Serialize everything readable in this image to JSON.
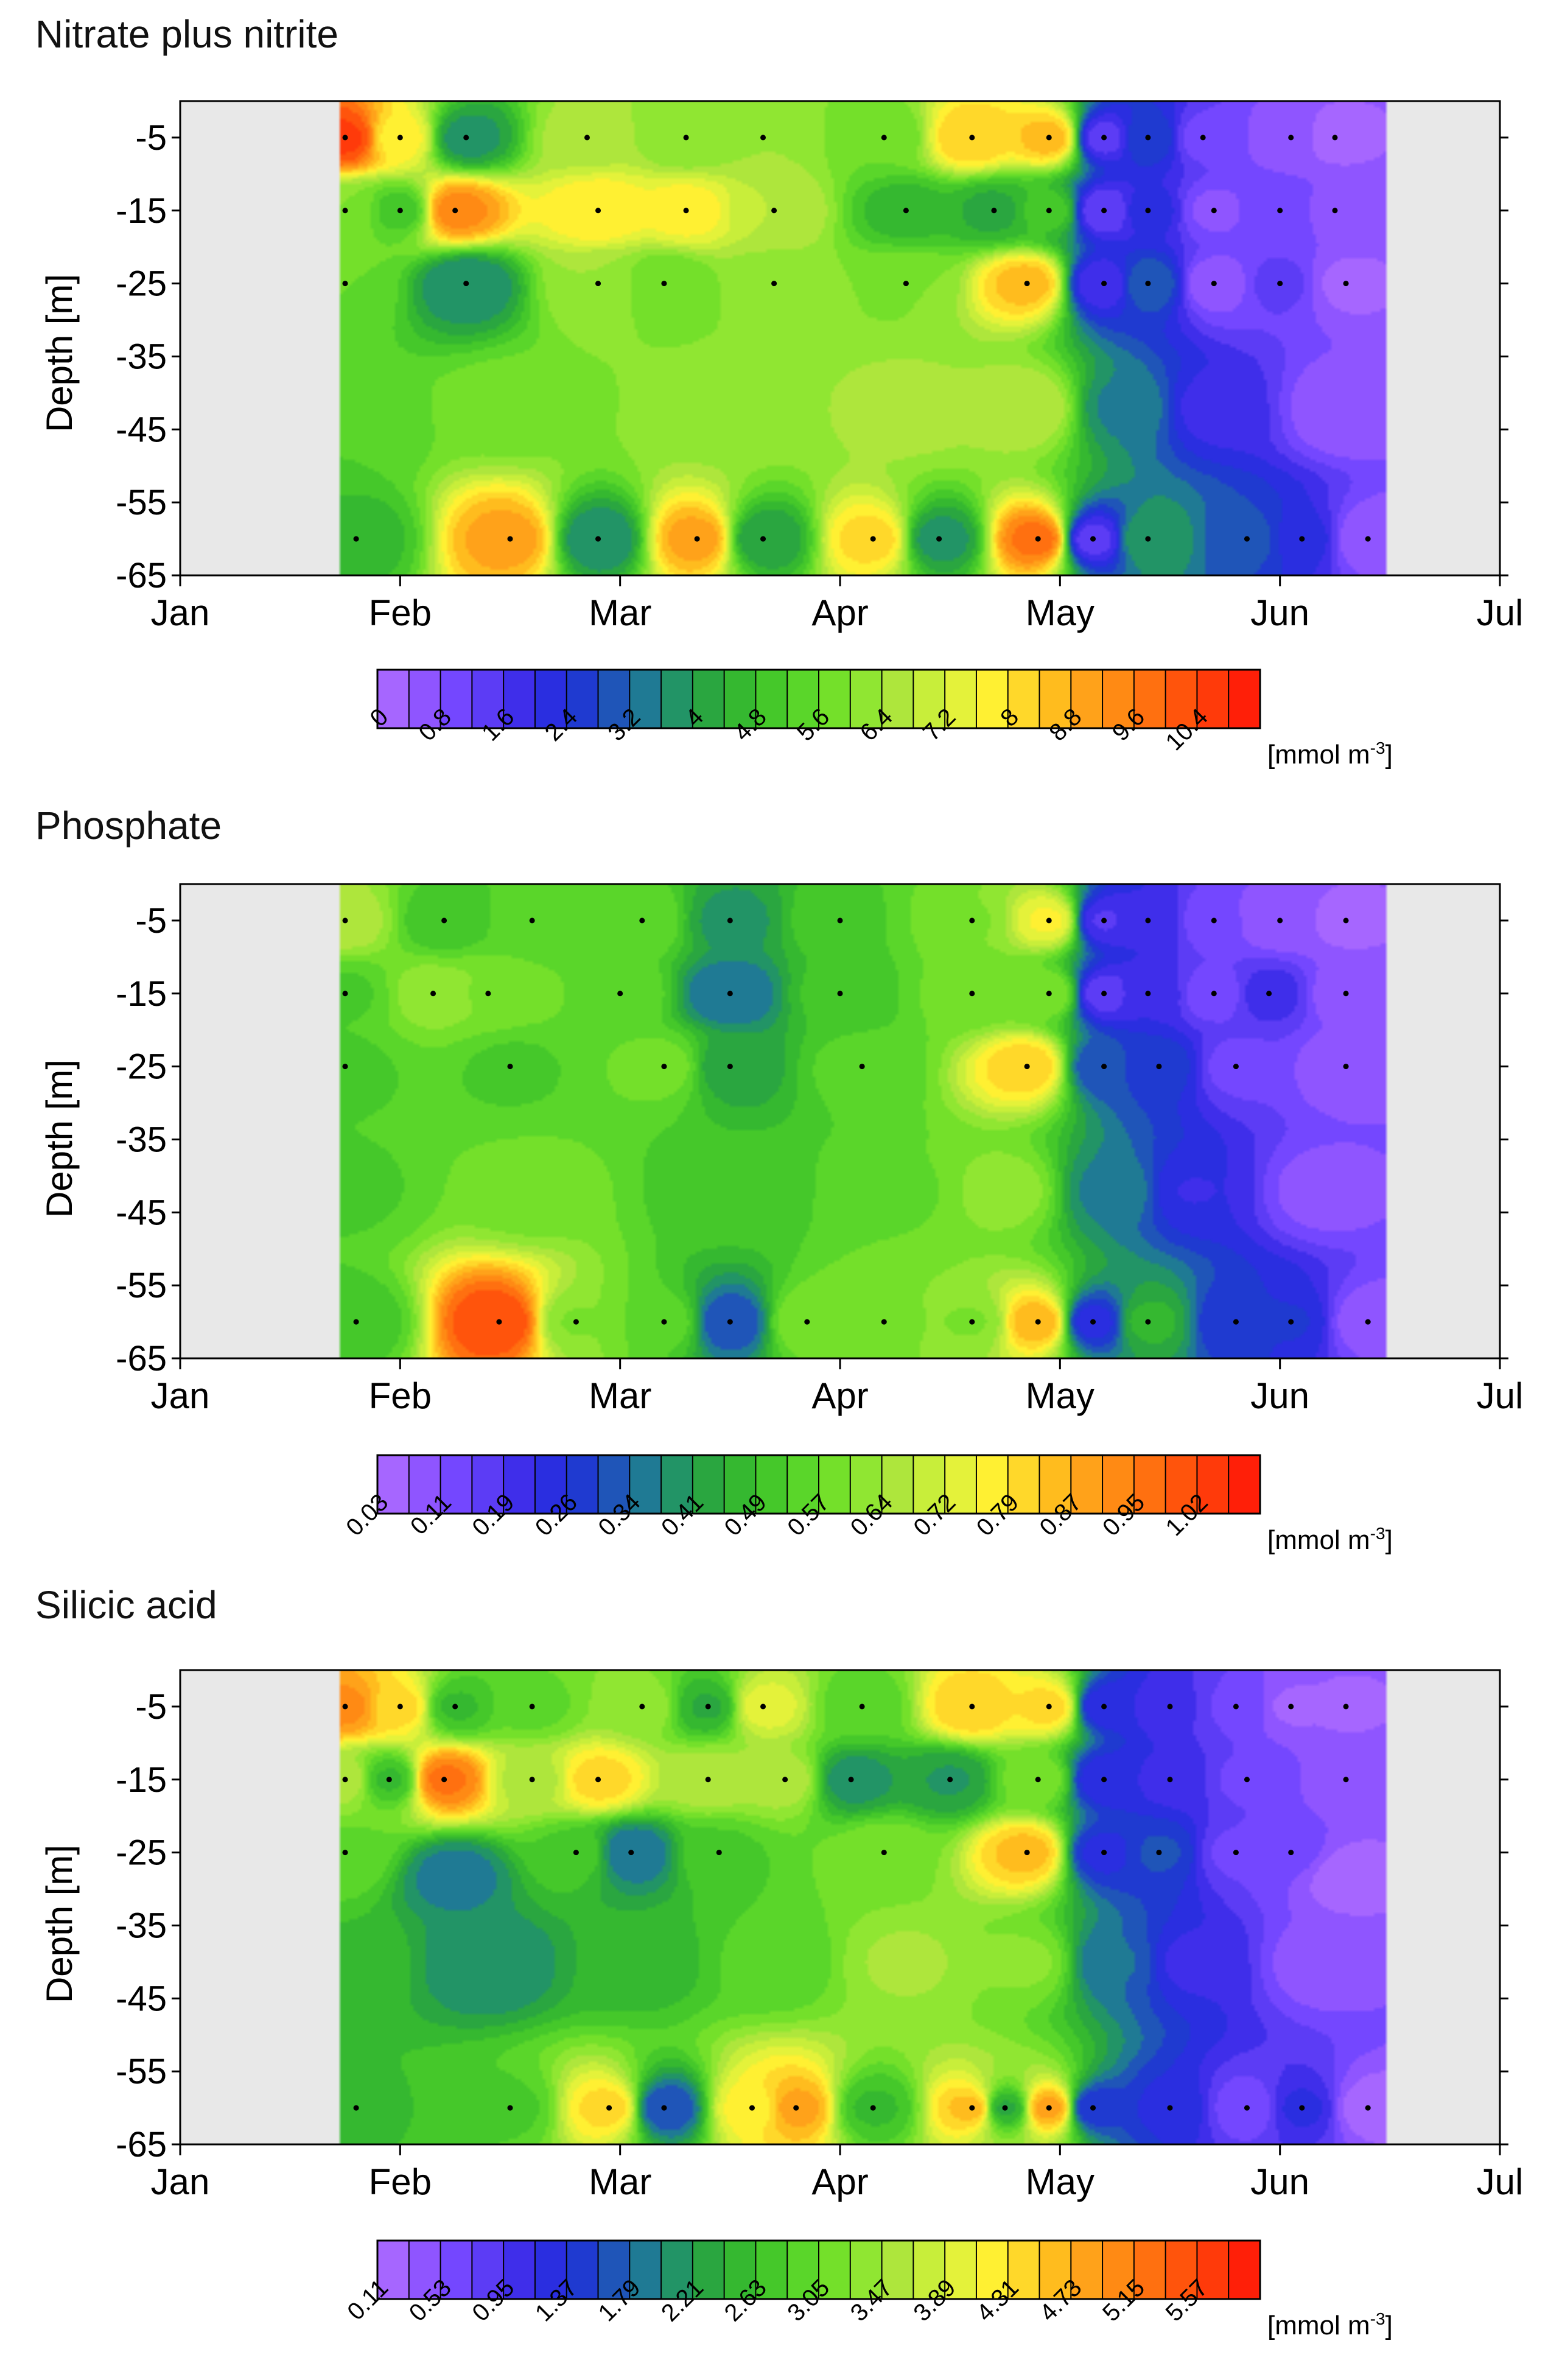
{
  "chart_data": [
    {
      "type": "heatmap",
      "title": "Nitrate plus nitrite",
      "xlabel": "",
      "ylabel": "Depth [m]",
      "x_tick_labels": [
        "Jan",
        "Feb",
        "Mar",
        "Apr",
        "May",
        "Jun",
        "Jul"
      ],
      "xlim_months": [
        0,
        6
      ],
      "ylim": [
        -65,
        0
      ],
      "y_ticks": [
        -5,
        -15,
        -25,
        -35,
        -45,
        -55,
        -65
      ],
      "data_xrange_months": [
        0.73,
        5.48
      ],
      "sample_depths": [
        -5,
        -15,
        -25,
        -60
      ],
      "colorbar": {
        "unit_prefix": "[mmol m",
        "unit_sup": "-3",
        "unit_suffix": "]",
        "tick_labels": [
          "0",
          "0.8",
          "1.6",
          "2.4",
          "3.2",
          "4",
          "4.8",
          "5.6",
          "6.4",
          "7.2",
          "8",
          "8.8",
          "9.6",
          "10.4"
        ],
        "levels": 28
      },
      "points": [
        {
          "t": 0.75,
          "d": -5,
          "v": 10.5
        },
        {
          "t": 1.0,
          "d": -5,
          "v": 7.8
        },
        {
          "t": 1.3,
          "d": -5,
          "v": 3.8
        },
        {
          "t": 1.85,
          "d": -5,
          "v": 6.6
        },
        {
          "t": 2.3,
          "d": -5,
          "v": 6.0
        },
        {
          "t": 2.65,
          "d": -5,
          "v": 6.4
        },
        {
          "t": 3.2,
          "d": -5,
          "v": 5.6
        },
        {
          "t": 3.6,
          "d": -5,
          "v": 8.4
        },
        {
          "t": 3.95,
          "d": -5,
          "v": 8.6
        },
        {
          "t": 4.2,
          "d": -5,
          "v": 1.4
        },
        {
          "t": 4.4,
          "d": -5,
          "v": 2.8
        },
        {
          "t": 4.65,
          "d": -5,
          "v": 1.0
        },
        {
          "t": 5.05,
          "d": -5,
          "v": 0.5
        },
        {
          "t": 5.25,
          "d": -5,
          "v": 0.3
        },
        {
          "t": 0.75,
          "d": -15,
          "v": 6.0
        },
        {
          "t": 1.0,
          "d": -15,
          "v": 5.0
        },
        {
          "t": 1.25,
          "d": -15,
          "v": 9.4
        },
        {
          "t": 1.9,
          "d": -15,
          "v": 8.0
        },
        {
          "t": 2.3,
          "d": -15,
          "v": 7.8
        },
        {
          "t": 2.7,
          "d": -15,
          "v": 6.8
        },
        {
          "t": 3.3,
          "d": -15,
          "v": 4.6
        },
        {
          "t": 3.7,
          "d": -15,
          "v": 4.3
        },
        {
          "t": 3.95,
          "d": -15,
          "v": 5.0
        },
        {
          "t": 4.2,
          "d": -15,
          "v": 1.2
        },
        {
          "t": 4.4,
          "d": -15,
          "v": 2.2
        },
        {
          "t": 4.7,
          "d": -15,
          "v": 0.7
        },
        {
          "t": 5.0,
          "d": -15,
          "v": 1.2
        },
        {
          "t": 5.25,
          "d": -15,
          "v": 0.6
        },
        {
          "t": 0.75,
          "d": -25,
          "v": 5.6
        },
        {
          "t": 1.3,
          "d": -25,
          "v": 3.6
        },
        {
          "t": 1.9,
          "d": -25,
          "v": 6.4
        },
        {
          "t": 2.2,
          "d": -25,
          "v": 5.6
        },
        {
          "t": 2.7,
          "d": -25,
          "v": 6.2
        },
        {
          "t": 3.3,
          "d": -25,
          "v": 6.0
        },
        {
          "t": 3.85,
          "d": -25,
          "v": 8.6
        },
        {
          "t": 4.2,
          "d": -25,
          "v": 1.6
        },
        {
          "t": 4.4,
          "d": -25,
          "v": 3.2
        },
        {
          "t": 4.7,
          "d": -25,
          "v": 0.5
        },
        {
          "t": 5.0,
          "d": -25,
          "v": 1.3
        },
        {
          "t": 5.3,
          "d": -25,
          "v": 0.3
        },
        {
          "t": 0.75,
          "d": -45,
          "v": 5.2
        },
        {
          "t": 1.5,
          "d": -42,
          "v": 5.8
        },
        {
          "t": 2.5,
          "d": -42,
          "v": 6.2
        },
        {
          "t": 3.3,
          "d": -42,
          "v": 6.6
        },
        {
          "t": 3.85,
          "d": -42,
          "v": 6.8
        },
        {
          "t": 4.3,
          "d": -42,
          "v": 3.5
        },
        {
          "t": 4.7,
          "d": -42,
          "v": 1.8
        },
        {
          "t": 5.3,
          "d": -42,
          "v": 0.4
        },
        {
          "t": 0.8,
          "d": -60,
          "v": 4.6
        },
        {
          "t": 1.5,
          "d": -60,
          "v": 9.0
        },
        {
          "t": 1.9,
          "d": -60,
          "v": 3.6
        },
        {
          "t": 2.35,
          "d": -60,
          "v": 9.0
        },
        {
          "t": 2.65,
          "d": -60,
          "v": 4.0
        },
        {
          "t": 3.15,
          "d": -60,
          "v": 8.2
        },
        {
          "t": 3.45,
          "d": -60,
          "v": 3.8
        },
        {
          "t": 3.9,
          "d": -60,
          "v": 9.8
        },
        {
          "t": 4.15,
          "d": -60,
          "v": 1.4
        },
        {
          "t": 4.4,
          "d": -60,
          "v": 4.0
        },
        {
          "t": 4.85,
          "d": -60,
          "v": 3.0
        },
        {
          "t": 5.1,
          "d": -60,
          "v": 2.2
        },
        {
          "t": 5.4,
          "d": -60,
          "v": 0.4
        }
      ]
    },
    {
      "type": "heatmap",
      "title": "Phosphate",
      "xlabel": "",
      "ylabel": "Depth [m]",
      "x_tick_labels": [
        "Jan",
        "Feb",
        "Mar",
        "Apr",
        "May",
        "Jun",
        "Jul"
      ],
      "xlim_months": [
        0,
        6
      ],
      "ylim": [
        -65,
        0
      ],
      "y_ticks": [
        -5,
        -15,
        -25,
        -35,
        -45,
        -55,
        -65
      ],
      "data_xrange_months": [
        0.73,
        5.48
      ],
      "sample_depths": [
        -5,
        -15,
        -25,
        -60
      ],
      "colorbar": {
        "unit_prefix": "[mmol m",
        "unit_sup": "-3",
        "unit_suffix": "]",
        "tick_labels": [
          "0.03",
          "0.11",
          "0.19",
          "0.26",
          "0.34",
          "0.41",
          "0.49",
          "0.57",
          "0.64",
          "0.72",
          "0.79",
          "0.87",
          "0.95",
          "1.02"
        ],
        "levels": 28
      },
      "points": [
        {
          "t": 0.75,
          "d": -5,
          "v": 0.66
        },
        {
          "t": 1.2,
          "d": -5,
          "v": 0.5
        },
        {
          "t": 1.6,
          "d": -5,
          "v": 0.54
        },
        {
          "t": 2.1,
          "d": -5,
          "v": 0.56
        },
        {
          "t": 2.5,
          "d": -5,
          "v": 0.4
        },
        {
          "t": 3.0,
          "d": -5,
          "v": 0.52
        },
        {
          "t": 3.6,
          "d": -5,
          "v": 0.6
        },
        {
          "t": 3.95,
          "d": -5,
          "v": 0.76
        },
        {
          "t": 4.2,
          "d": -5,
          "v": 0.18
        },
        {
          "t": 4.4,
          "d": -5,
          "v": 0.22
        },
        {
          "t": 4.7,
          "d": -5,
          "v": 0.11
        },
        {
          "t": 5.0,
          "d": -5,
          "v": 0.08
        },
        {
          "t": 5.3,
          "d": -5,
          "v": 0.06
        },
        {
          "t": 0.75,
          "d": -15,
          "v": 0.52
        },
        {
          "t": 1.15,
          "d": -15,
          "v": 0.62
        },
        {
          "t": 1.4,
          "d": -15,
          "v": 0.6
        },
        {
          "t": 2.0,
          "d": -15,
          "v": 0.56
        },
        {
          "t": 2.5,
          "d": -15,
          "v": 0.34
        },
        {
          "t": 3.0,
          "d": -15,
          "v": 0.5
        },
        {
          "t": 3.6,
          "d": -15,
          "v": 0.58
        },
        {
          "t": 3.95,
          "d": -15,
          "v": 0.6
        },
        {
          "t": 4.2,
          "d": -15,
          "v": 0.16
        },
        {
          "t": 4.4,
          "d": -15,
          "v": 0.22
        },
        {
          "t": 4.7,
          "d": -15,
          "v": 0.12
        },
        {
          "t": 4.95,
          "d": -15,
          "v": 0.2
        },
        {
          "t": 5.3,
          "d": -15,
          "v": 0.08
        },
        {
          "t": 0.75,
          "d": -25,
          "v": 0.52
        },
        {
          "t": 1.5,
          "d": -25,
          "v": 0.52
        },
        {
          "t": 2.2,
          "d": -25,
          "v": 0.58
        },
        {
          "t": 2.5,
          "d": -25,
          "v": 0.42
        },
        {
          "t": 3.1,
          "d": -25,
          "v": 0.54
        },
        {
          "t": 3.85,
          "d": -25,
          "v": 0.82
        },
        {
          "t": 4.2,
          "d": -25,
          "v": 0.3
        },
        {
          "t": 4.45,
          "d": -25,
          "v": 0.28
        },
        {
          "t": 4.8,
          "d": -25,
          "v": 0.13
        },
        {
          "t": 5.3,
          "d": -25,
          "v": 0.08
        },
        {
          "t": 0.75,
          "d": -42,
          "v": 0.52
        },
        {
          "t": 1.6,
          "d": -42,
          "v": 0.58
        },
        {
          "t": 2.5,
          "d": -42,
          "v": 0.5
        },
        {
          "t": 3.3,
          "d": -42,
          "v": 0.56
        },
        {
          "t": 3.75,
          "d": -42,
          "v": 0.62
        },
        {
          "t": 4.25,
          "d": -42,
          "v": 0.36
        },
        {
          "t": 4.6,
          "d": -42,
          "v": 0.22
        },
        {
          "t": 5.2,
          "d": -42,
          "v": 0.09
        },
        {
          "t": 0.8,
          "d": -60,
          "v": 0.5
        },
        {
          "t": 1.45,
          "d": -60,
          "v": 1.02
        },
        {
          "t": 1.8,
          "d": -60,
          "v": 0.6
        },
        {
          "t": 2.2,
          "d": -60,
          "v": 0.55
        },
        {
          "t": 2.5,
          "d": -60,
          "v": 0.3
        },
        {
          "t": 2.85,
          "d": -60,
          "v": 0.6
        },
        {
          "t": 3.2,
          "d": -60,
          "v": 0.6
        },
        {
          "t": 3.6,
          "d": -60,
          "v": 0.6
        },
        {
          "t": 3.9,
          "d": -60,
          "v": 0.86
        },
        {
          "t": 4.15,
          "d": -60,
          "v": 0.24
        },
        {
          "t": 4.4,
          "d": -60,
          "v": 0.46
        },
        {
          "t": 4.8,
          "d": -60,
          "v": 0.26
        },
        {
          "t": 5.05,
          "d": -60,
          "v": 0.26
        },
        {
          "t": 5.4,
          "d": -60,
          "v": 0.08
        }
      ]
    },
    {
      "type": "heatmap",
      "title": "Silicic acid",
      "xlabel": "",
      "ylabel": "Depth [m]",
      "x_tick_labels": [
        "Jan",
        "Feb",
        "Mar",
        "Apr",
        "May",
        "Jun",
        "Jul"
      ],
      "xlim_months": [
        0,
        6
      ],
      "ylim": [
        -65,
        0
      ],
      "y_ticks": [
        -5,
        -15,
        -25,
        -35,
        -45,
        -55,
        -65
      ],
      "data_xrange_months": [
        0.73,
        5.48
      ],
      "sample_depths": [
        -5,
        -15,
        -25,
        -60
      ],
      "colorbar": {
        "unit_prefix": "[mmol m",
        "unit_sup": "-3",
        "unit_suffix": "]",
        "tick_labels": [
          "0.11",
          "0.53",
          "0.95",
          "1.37",
          "1.79",
          "2.21",
          "2.63",
          "3.05",
          "3.47",
          "3.89",
          "4.31",
          "4.73",
          "5.15",
          "5.57"
        ],
        "levels": 28
      },
      "points": [
        {
          "t": 0.75,
          "d": -5,
          "v": 5.0
        },
        {
          "t": 1.0,
          "d": -5,
          "v": 4.4
        },
        {
          "t": 1.25,
          "d": -5,
          "v": 2.6
        },
        {
          "t": 1.6,
          "d": -5,
          "v": 3.0
        },
        {
          "t": 2.1,
          "d": -5,
          "v": 3.4
        },
        {
          "t": 2.4,
          "d": -5,
          "v": 2.4
        },
        {
          "t": 2.65,
          "d": -5,
          "v": 4.0
        },
        {
          "t": 3.1,
          "d": -5,
          "v": 2.9
        },
        {
          "t": 3.6,
          "d": -5,
          "v": 4.5
        },
        {
          "t": 3.95,
          "d": -5,
          "v": 4.4
        },
        {
          "t": 4.2,
          "d": -5,
          "v": 1.2
        },
        {
          "t": 4.5,
          "d": -5,
          "v": 1.0
        },
        {
          "t": 4.8,
          "d": -5,
          "v": 0.7
        },
        {
          "t": 5.05,
          "d": -5,
          "v": 0.3
        },
        {
          "t": 5.3,
          "d": -5,
          "v": 0.3
        },
        {
          "t": 0.75,
          "d": -15,
          "v": 3.6
        },
        {
          "t": 0.95,
          "d": -15,
          "v": 2.6
        },
        {
          "t": 1.2,
          "d": -15,
          "v": 5.2
        },
        {
          "t": 1.6,
          "d": -15,
          "v": 3.6
        },
        {
          "t": 1.9,
          "d": -15,
          "v": 4.4
        },
        {
          "t": 2.4,
          "d": -15,
          "v": 3.6
        },
        {
          "t": 2.75,
          "d": -15,
          "v": 3.6
        },
        {
          "t": 3.05,
          "d": -15,
          "v": 2.1
        },
        {
          "t": 3.5,
          "d": -15,
          "v": 2.2
        },
        {
          "t": 3.9,
          "d": -15,
          "v": 3.2
        },
        {
          "t": 4.2,
          "d": -15,
          "v": 1.2
        },
        {
          "t": 4.5,
          "d": -15,
          "v": 1.1
        },
        {
          "t": 4.85,
          "d": -15,
          "v": 0.7
        },
        {
          "t": 5.3,
          "d": -15,
          "v": 0.4
        },
        {
          "t": 0.75,
          "d": -25,
          "v": 3.0
        },
        {
          "t": 1.25,
          "d": -28,
          "v": 1.9
        },
        {
          "t": 1.8,
          "d": -25,
          "v": 2.8
        },
        {
          "t": 2.05,
          "d": -25,
          "v": 1.8
        },
        {
          "t": 2.45,
          "d": -25,
          "v": 2.8
        },
        {
          "t": 3.2,
          "d": -25,
          "v": 3.2
        },
        {
          "t": 3.85,
          "d": -25,
          "v": 4.6
        },
        {
          "t": 4.2,
          "d": -25,
          "v": 1.3
        },
        {
          "t": 4.45,
          "d": -25,
          "v": 1.6
        },
        {
          "t": 4.8,
          "d": -25,
          "v": 0.7
        },
        {
          "t": 5.05,
          "d": -25,
          "v": 0.6
        },
        {
          "t": 5.3,
          "d": -28,
          "v": 0.2
        },
        {
          "t": 0.75,
          "d": -40,
          "v": 2.6
        },
        {
          "t": 1.4,
          "d": -40,
          "v": 2.0
        },
        {
          "t": 2.1,
          "d": -40,
          "v": 2.5
        },
        {
          "t": 2.7,
          "d": -40,
          "v": 2.9
        },
        {
          "t": 3.3,
          "d": -40,
          "v": 3.5
        },
        {
          "t": 3.85,
          "d": -40,
          "v": 3.3
        },
        {
          "t": 4.25,
          "d": -40,
          "v": 1.8
        },
        {
          "t": 4.6,
          "d": -40,
          "v": 1.1
        },
        {
          "t": 5.2,
          "d": -40,
          "v": 0.4
        },
        {
          "t": 0.8,
          "d": -60,
          "v": 2.6
        },
        {
          "t": 1.5,
          "d": -60,
          "v": 2.8
        },
        {
          "t": 1.95,
          "d": -60,
          "v": 4.4
        },
        {
          "t": 2.2,
          "d": -60,
          "v": 1.6
        },
        {
          "t": 2.6,
          "d": -60,
          "v": 4.2
        },
        {
          "t": 2.8,
          "d": -60,
          "v": 4.8
        },
        {
          "t": 3.15,
          "d": -60,
          "v": 2.6
        },
        {
          "t": 3.6,
          "d": -60,
          "v": 4.6
        },
        {
          "t": 3.75,
          "d": -60,
          "v": 2.4
        },
        {
          "t": 3.95,
          "d": -60,
          "v": 4.8
        },
        {
          "t": 4.15,
          "d": -60,
          "v": 1.4
        },
        {
          "t": 4.5,
          "d": -60,
          "v": 1.3
        },
        {
          "t": 4.85,
          "d": -60,
          "v": 0.6
        },
        {
          "t": 5.1,
          "d": -60,
          "v": 1.2
        },
        {
          "t": 5.4,
          "d": -60,
          "v": 0.2
        }
      ]
    }
  ],
  "palette": [
    "#a666ff",
    "#8f55ff",
    "#7447ff",
    "#5c3cf5",
    "#3f2eea",
    "#2a2ee0",
    "#1f3ad0",
    "#1f55b8",
    "#1f7a94",
    "#229466",
    "#2aa640",
    "#35b830",
    "#45c82a",
    "#5ad62a",
    "#74e02a",
    "#90e632",
    "#aee63c",
    "#c8ee3a",
    "#e4f23a",
    "#fff032",
    "#ffd82a",
    "#ffbc1e",
    "#ffa21a",
    "#ff8a14",
    "#ff7010",
    "#ff540c",
    "#ff3a0a",
    "#ff1f08"
  ],
  "mask_color": "#e8e8e8"
}
